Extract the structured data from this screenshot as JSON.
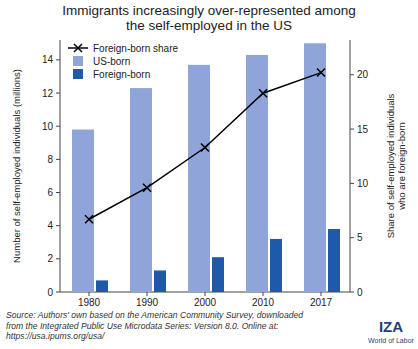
{
  "chart_data": {
    "type": "bar",
    "title": [
      "Immigrants increasingly over-represented among",
      "the self-employed in the US"
    ],
    "categories": [
      "1980",
      "1990",
      "2000",
      "2010",
      "2017"
    ],
    "series": [
      {
        "name": "Foreign-born share",
        "type": "line",
        "axis": "y2",
        "color": "#000000",
        "marker": "x",
        "values": [
          6.7,
          9.6,
          13.3,
          18.3,
          20.2
        ]
      },
      {
        "name": "US-born",
        "type": "bar",
        "color": "#8fa5da",
        "values": [
          9.8,
          12.3,
          13.7,
          14.3,
          15.0
        ]
      },
      {
        "name": "Foreign-born",
        "type": "bar",
        "color": "#1f5aa8",
        "values": [
          0.7,
          1.3,
          2.1,
          3.2,
          3.8
        ]
      }
    ],
    "ylim": [
      0,
      15.2
    ],
    "yticks": [
      0,
      2,
      4,
      6,
      8,
      10,
      12,
      14
    ],
    "y2lim": [
      0,
      23.2
    ],
    "y2ticks": [
      0,
      5,
      10,
      15,
      20
    ],
    "y_label": "Number of self-employed individuals (millions)",
    "y2_label": [
      "Share of self-employed individuals",
      "who are foreign-born"
    ],
    "legend": "upper left",
    "source": [
      "Source: Authors' own based on the American Community Survey, downloaded",
      "from the Integrated Public Use Microdata Series: Version 8.0. Online at:",
      "https://usa.ipums.org/usa/"
    ],
    "logo": [
      "IZA",
      "World of Labor"
    ]
  }
}
